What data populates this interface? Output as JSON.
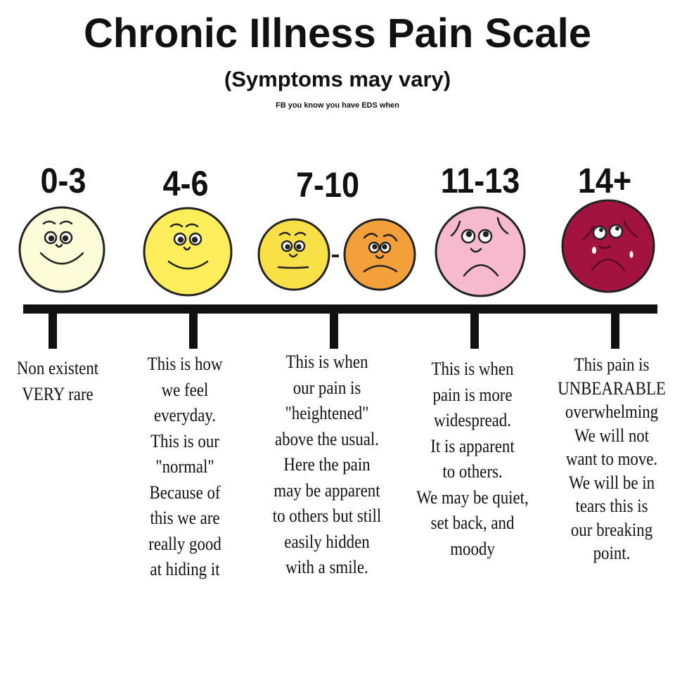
{
  "title": "Chronic Illness Pain Scale",
  "subtitle": "(Symptoms may vary)",
  "credit": "FB you know you have EDS when",
  "levels": [
    {
      "range": "0-3",
      "face_colors": [
        "#fdfbd8"
      ],
      "lines": [
        "Non existent",
        "VERY rare"
      ]
    },
    {
      "range": "4-6",
      "face_colors": [
        "#fbee5a"
      ],
      "lines": [
        "This is how",
        "we feel",
        "everyday.",
        "This is our",
        "\"normal\"",
        "Because of",
        "this we are",
        "really good",
        "at hiding it"
      ]
    },
    {
      "range": "7-10",
      "face_colors": [
        "#f8df46",
        "#f3a03a"
      ],
      "separator": "-",
      "lines": [
        "This is when",
        "our pain is",
        "\"heightened\"",
        "above the usual.",
        "Here the pain",
        "may be apparent",
        "to others but still",
        "easily hidden",
        "with a smile."
      ]
    },
    {
      "range": "11-13",
      "face_colors": [
        "#f7b9cd"
      ],
      "lines": [
        "This is when",
        "pain is more",
        "widespread.",
        "It is apparent",
        "to others.",
        "We may be quiet,",
        "set back, and",
        "moody"
      ]
    },
    {
      "range": "14+",
      "face_colors": [
        "#a3133f"
      ],
      "lines": [
        "This pain is",
        "UNBEARABLE",
        "overwhelming",
        "We will not",
        "want to move.",
        "We will be in",
        "tears this is",
        "our breaking",
        "point."
      ]
    }
  ]
}
